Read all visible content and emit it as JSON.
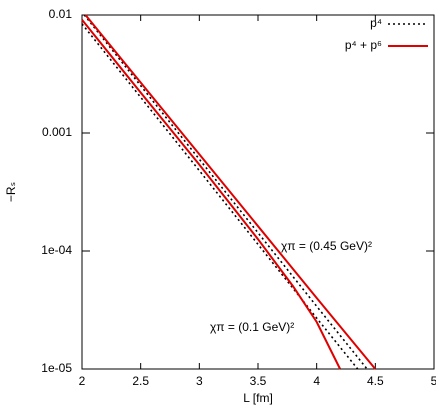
{
  "chart_data": {
    "type": "line",
    "log_y": true,
    "xlabel": "L [fm]",
    "ylabel": "−Rₛ",
    "xlim": [
      2,
      5
    ],
    "xticks": [
      2,
      2.5,
      3,
      3.5,
      4,
      4.5,
      5
    ],
    "ylim": [
      1e-05,
      0.01
    ],
    "yticks": [
      {
        "value": 0.01,
        "label": "0.01"
      },
      {
        "value": 0.001,
        "label": "0.001"
      },
      {
        "value": 0.0001,
        "label": "1e-04"
      },
      {
        "value": 1e-05,
        "label": "1e-05"
      }
    ],
    "legend": "upper right",
    "series": [
      {
        "name": "p⁴",
        "color": "#000000",
        "dash": "2,3",
        "curves": [
          {
            "x": [
              2.02,
              3,
              4,
              4.43
            ],
            "values": [
              0.01,
              0.0006,
              3.4e-05,
              1e-05
            ]
          },
          {
            "x": [
              2,
              3,
              4,
              4.35
            ],
            "values": [
              0.0084,
              0.00048,
              2.7e-05,
              1e-05
            ]
          }
        ]
      },
      {
        "name": "p⁴ + p⁶",
        "color": "#e00000",
        "dash": "none",
        "curves": [
          {
            "x": [
              2.03,
              3,
              4,
              4.5
            ],
            "values": [
              0.01,
              0.00066,
              4e-05,
              1e-05
            ]
          },
          {
            "x": [
              2,
              2.5,
              3,
              3.5,
              3.8,
              4,
              4.2
            ],
            "values": [
              0.0091,
              0.0022,
              0.00054,
              0.000126,
              5e-05,
              2.5e-05,
              1e-05
            ]
          }
        ]
      }
    ],
    "annotations": [
      "χπ = (0.45 GeV)²",
      "χπ = (0.1 GeV)²"
    ]
  }
}
